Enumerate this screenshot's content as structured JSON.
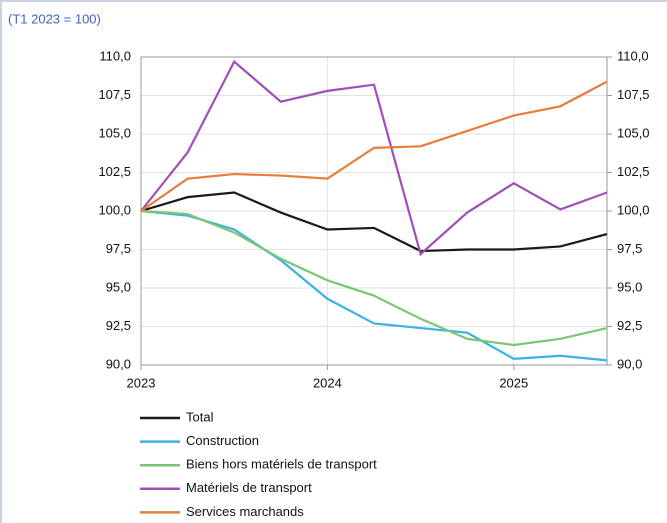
{
  "chart_data": {
    "type": "line",
    "subtitle": "(T1 2023 = 100)",
    "x": [
      2023,
      2023.25,
      2023.5,
      2023.75,
      2024,
      2024.25,
      2024.5,
      2024.75,
      2025,
      2025.25,
      2025.5
    ],
    "xlim": [
      2023,
      2025.5
    ],
    "xticks": [
      2023,
      2024,
      2025
    ],
    "ylim": [
      90,
      110
    ],
    "yticks": [
      {
        "value": 90,
        "label": "90,0"
      },
      {
        "value": 92.5,
        "label": "92,5"
      },
      {
        "value": 95,
        "label": "95,0"
      },
      {
        "value": 97.5,
        "label": "97,5"
      },
      {
        "value": 100,
        "label": "100,0"
      },
      {
        "value": 102.5,
        "label": "102,5"
      },
      {
        "value": 105,
        "label": "105,0"
      },
      {
        "value": 107.5,
        "label": "107,5"
      },
      {
        "value": 110,
        "label": "110,0"
      }
    ],
    "y2lim": [
      90,
      110
    ],
    "y2ticks": [
      {
        "value": 90,
        "label": "90,0"
      },
      {
        "value": 92.5,
        "label": "92,5"
      },
      {
        "value": 95,
        "label": "95,0"
      },
      {
        "value": 97.5,
        "label": "97,5"
      },
      {
        "value": 100,
        "label": "100,0"
      },
      {
        "value": 102.5,
        "label": "102,5"
      },
      {
        "value": 105,
        "label": "105,0"
      },
      {
        "value": 107.5,
        "label": "107,5"
      },
      {
        "value": 110,
        "label": "110,0"
      }
    ],
    "grid": true,
    "series": [
      {
        "name": "Total",
        "color": "#1a1a1a",
        "values": [
          100,
          100.9,
          101.2,
          99.9,
          98.8,
          98.9,
          97.4,
          97.5,
          97.5,
          97.7,
          98.5
        ]
      },
      {
        "name": "Construction",
        "color": "#3db0e8",
        "values": [
          100,
          99.7,
          98.8,
          96.8,
          94.3,
          92.7,
          92.4,
          92.1,
          90.4,
          90.6,
          90.3
        ]
      },
      {
        "name": "Biens hors matériels de transport",
        "color": "#7cc576",
        "values": [
          100,
          99.8,
          98.6,
          96.9,
          95.5,
          94.5,
          93.0,
          91.7,
          91.3,
          91.7,
          92.4
        ]
      },
      {
        "name": "Matériels de transport",
        "color": "#a14fb8",
        "values": [
          100,
          103.8,
          109.7,
          107.1,
          107.8,
          108.2,
          97.2,
          99.9,
          101.8,
          100.1,
          101.2
        ]
      },
      {
        "name": "Services marchands",
        "color": "#e57d3c",
        "values": [
          100,
          102.1,
          102.4,
          102.3,
          102.1,
          104.1,
          104.2,
          105.2,
          106.2,
          106.8,
          108.4
        ]
      }
    ]
  }
}
